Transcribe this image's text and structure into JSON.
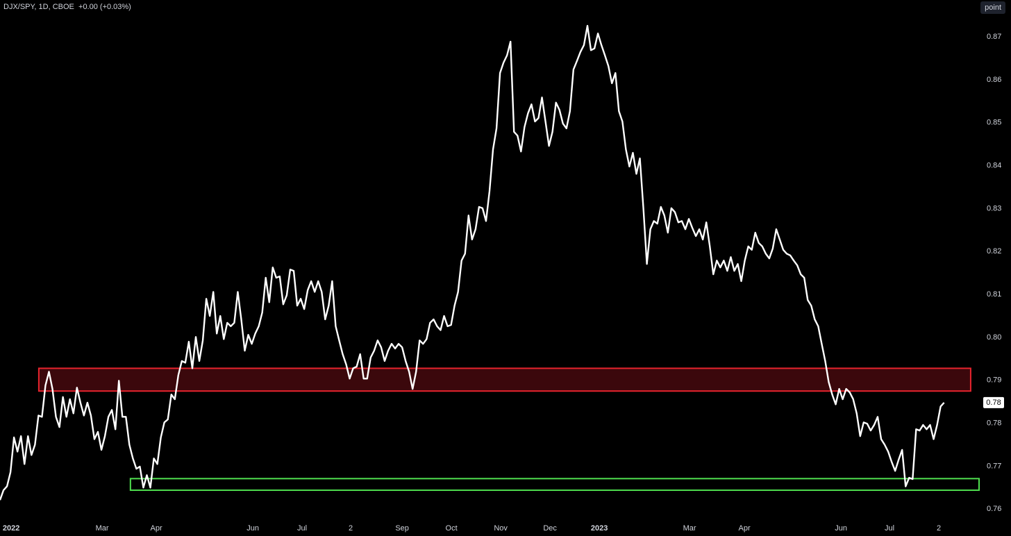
{
  "chart_data": {
    "type": "line",
    "symbol": "DJX/SPY, 1D, CBOE",
    "change": "+0.00 (+0.03%)",
    "scale_button": "point",
    "last_value_label": "0.78",
    "xlim": [
      0,
      280
    ],
    "ylim": [
      0.7581,
      0.8786
    ],
    "yticks": [
      0.76,
      0.77,
      0.78,
      0.79,
      {
        "value": 0.8,
        "label": "0.80"
      },
      0.81,
      0.82,
      0.83,
      0.84,
      0.85,
      0.86,
      0.87
    ],
    "xticks": [
      {
        "value": 3.2,
        "label": "2022"
      },
      {
        "value": 29.2,
        "label": "Mar"
      },
      {
        "value": 44.7,
        "label": "Apr"
      },
      {
        "value": 72.3,
        "label": "Jun"
      },
      {
        "value": 86.4,
        "label": "Jul"
      },
      {
        "value": 100.3,
        "label": "2"
      },
      {
        "value": 115,
        "label": "Sep"
      },
      {
        "value": 129.1,
        "label": "Oct"
      },
      {
        "value": 143.2,
        "label": "Nov"
      },
      {
        "value": 157.3,
        "label": "Dec"
      },
      {
        "value": 171.4,
        "label": "2023"
      },
      {
        "value": 197.2,
        "label": "Mar"
      },
      {
        "value": 212.9,
        "label": "Apr"
      },
      {
        "value": 240.5,
        "label": "Jun"
      },
      {
        "value": 254.4,
        "label": "Jul"
      },
      {
        "value": 268.5,
        "label": "2"
      }
    ],
    "zones": [
      {
        "xrange": [
          11.1,
          277.6
        ],
        "yrange": [
          0.7875,
          0.7928
        ],
        "color": "#e8242e",
        "fill": "#3b080c"
      },
      {
        "xrange": [
          37.3,
          280
        ],
        "yrange": [
          0.7644,
          0.7671
        ],
        "color": "#4fe04f",
        "fill": "#000000"
      }
    ],
    "x": [
      0,
      1,
      2,
      3,
      4,
      5,
      6,
      7,
      8,
      9,
      10,
      11,
      12,
      13,
      14,
      15,
      16,
      17,
      18,
      19,
      20,
      21,
      22,
      23,
      24,
      25,
      26,
      27,
      28,
      29,
      30,
      31,
      32,
      33,
      34,
      35,
      36,
      37,
      38,
      39,
      40,
      41,
      42,
      43,
      44,
      45,
      46,
      47,
      48,
      49,
      50,
      51,
      52,
      53,
      54,
      55,
      56,
      57,
      58,
      59,
      60,
      61,
      62,
      63,
      64,
      65,
      66,
      67,
      68,
      69,
      70,
      71,
      72,
      73,
      74,
      75,
      76,
      77,
      78,
      79,
      80,
      81,
      82,
      83,
      84,
      85,
      86,
      87,
      88,
      89,
      90,
      91,
      92,
      93,
      94,
      95,
      96,
      97,
      98,
      99,
      100,
      101,
      102,
      103,
      104,
      105,
      106,
      107,
      108,
      109,
      110,
      111,
      112,
      113,
      114,
      115,
      116,
      117,
      118,
      119,
      120,
      121,
      122,
      123,
      124,
      125,
      126,
      127,
      128,
      129,
      130,
      131,
      132,
      133,
      134,
      135,
      136,
      137,
      138,
      139,
      140,
      141,
      142,
      143,
      144,
      145,
      146,
      147,
      148,
      149,
      150,
      151,
      152,
      153,
      154,
      155,
      156,
      157,
      158,
      159,
      160,
      161,
      162,
      163,
      164,
      165,
      166,
      167,
      168,
      169,
      170,
      171,
      172,
      173,
      174,
      175,
      176,
      177,
      178,
      179,
      180,
      181,
      182,
      183,
      184,
      185,
      186,
      187,
      188,
      189,
      190,
      191,
      192,
      193,
      194,
      195,
      196,
      197,
      198,
      199,
      200,
      201,
      202,
      203,
      204,
      205,
      206,
      207,
      208,
      209,
      210,
      211,
      212,
      213,
      214,
      215,
      216,
      217,
      218,
      219,
      220,
      221,
      222,
      223,
      224,
      225,
      226,
      227,
      228,
      229,
      230,
      231,
      232,
      233,
      234,
      235,
      236,
      237,
      238,
      239,
      240,
      241,
      242,
      243,
      244,
      245,
      246,
      247,
      248,
      249,
      250,
      251,
      252,
      253,
      254,
      255,
      256,
      257,
      258,
      259,
      260,
      261,
      262,
      263,
      264,
      265,
      266,
      267,
      268,
      269,
      270
    ],
    "series": [
      {
        "name": "DJX/SPY",
        "color": "#ffffff",
        "values": [
          0.7621,
          0.7644,
          0.7653,
          0.7686,
          0.7767,
          0.7734,
          0.777,
          0.7705,
          0.777,
          0.7726,
          0.775,
          0.7818,
          0.7815,
          0.7888,
          0.792,
          0.788,
          0.7815,
          0.7791,
          0.7861,
          0.7815,
          0.7856,
          0.7823,
          0.7883,
          0.7848,
          0.7818,
          0.7848,
          0.7818,
          0.7763,
          0.778,
          0.7738,
          0.777,
          0.7815,
          0.7831,
          0.7786,
          0.7899,
          0.7815,
          0.7815,
          0.775,
          0.7718,
          0.7694,
          0.7699,
          0.765,
          0.7679,
          0.765,
          0.7718,
          0.7705,
          0.7767,
          0.7802,
          0.7809,
          0.7867,
          0.7856,
          0.7912,
          0.7945,
          0.7941,
          0.799,
          0.7928,
          0.8001,
          0.7945,
          0.7993,
          0.809,
          0.805,
          0.8106,
          0.8009,
          0.805,
          0.7996,
          0.8034,
          0.8026,
          0.8034,
          0.8106,
          0.8042,
          0.7969,
          0.8006,
          0.7985,
          0.8009,
          0.8026,
          0.8058,
          0.8139,
          0.8082,
          0.8163,
          0.8139,
          0.8142,
          0.8077,
          0.8098,
          0.8158,
          0.8155,
          0.8074,
          0.809,
          0.8066,
          0.811,
          0.8131,
          0.8106,
          0.8131,
          0.8106,
          0.8042,
          0.8074,
          0.8131,
          0.8026,
          0.7993,
          0.7961,
          0.7937,
          0.7904,
          0.7928,
          0.7932,
          0.7961,
          0.7904,
          0.7904,
          0.7953,
          0.7969,
          0.7993,
          0.7977,
          0.7945,
          0.7969,
          0.7985,
          0.7974,
          0.7985,
          0.7977,
          0.7945,
          0.792,
          0.788,
          0.792,
          0.7993,
          0.7985,
          0.7996,
          0.8034,
          0.8042,
          0.8026,
          0.8017,
          0.805,
          0.8026,
          0.8029,
          0.8074,
          0.8106,
          0.8179,
          0.8195,
          0.8284,
          0.8228,
          0.8252,
          0.8304,
          0.8301,
          0.8271,
          0.8341,
          0.8438,
          0.8487,
          0.8616,
          0.864,
          0.8657,
          0.8689,
          0.8479,
          0.847,
          0.8433,
          0.849,
          0.8522,
          0.8543,
          0.8503,
          0.8511,
          0.8559,
          0.8503,
          0.8446,
          0.8479,
          0.8547,
          0.853,
          0.8498,
          0.8487,
          0.8527,
          0.8624,
          0.8644,
          0.8665,
          0.8681,
          0.8726,
          0.8669,
          0.8673,
          0.8708,
          0.8681,
          0.8657,
          0.8632,
          0.8592,
          0.8616,
          0.8527,
          0.8503,
          0.8438,
          0.8398,
          0.843,
          0.8381,
          0.8417,
          0.8301,
          0.8171,
          0.8252,
          0.8271,
          0.8265,
          0.8304,
          0.8284,
          0.8244,
          0.8301,
          0.8292,
          0.8268,
          0.8271,
          0.8252,
          0.8276,
          0.8255,
          0.8236,
          0.8252,
          0.8228,
          0.8268,
          0.8212,
          0.8147,
          0.8179,
          0.8163,
          0.8179,
          0.8155,
          0.8187,
          0.8155,
          0.8171,
          0.8131,
          0.8179,
          0.8212,
          0.8204,
          0.8244,
          0.822,
          0.8212,
          0.8195,
          0.8184,
          0.8207,
          0.8252,
          0.8228,
          0.8204,
          0.8195,
          0.8191,
          0.8179,
          0.8168,
          0.8147,
          0.8139,
          0.8087,
          0.8074,
          0.8042,
          0.8026,
          0.7985,
          0.7945,
          0.7896,
          0.7867,
          0.7844,
          0.788,
          0.7856,
          0.788,
          0.7872,
          0.7856,
          0.7823,
          0.777,
          0.7802,
          0.7799,
          0.7783,
          0.7796,
          0.7815,
          0.7763,
          0.775,
          0.7734,
          0.771,
          0.7689,
          0.7715,
          0.7738,
          0.7653,
          0.7673,
          0.767,
          0.7786,
          0.7783,
          0.7796,
          0.7786,
          0.7796,
          0.7763,
          0.7796,
          0.7839,
          0.7848
        ]
      }
    ]
  }
}
